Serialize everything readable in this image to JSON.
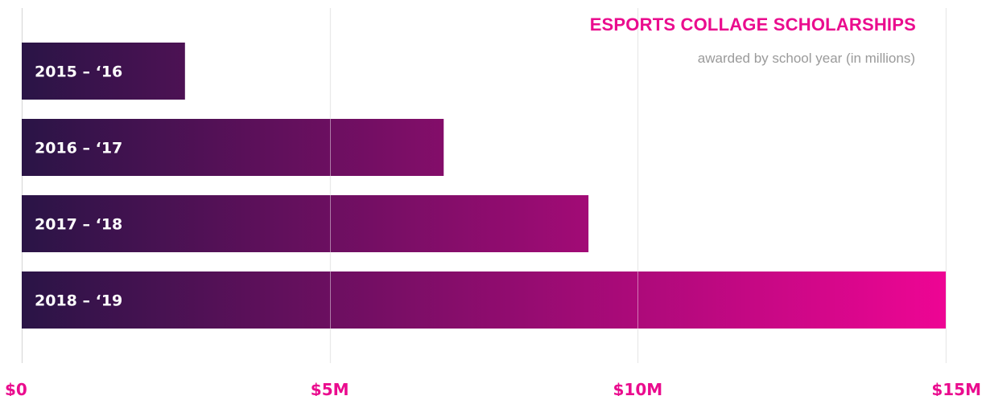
{
  "chart_data": {
    "type": "bar",
    "orientation": "horizontal",
    "title": "ESPORTS COLLAGE SCHOLARSHIPS",
    "subtitle": "awarded by school year (in millions)",
    "categories": [
      "2015 – ‘16",
      "2016 – ‘17",
      "2017 – ‘18",
      "2018 – ‘19"
    ],
    "values": [
      2.65,
      6.85,
      9.2,
      15.0
    ],
    "x_unit": "USD millions",
    "xlim": [
      0,
      15
    ],
    "x_ticks": [
      0,
      5,
      10,
      15
    ],
    "x_tick_labels": [
      "$0",
      "$5M",
      "$10M",
      "$15M"
    ],
    "grid": true,
    "colors": {
      "gradient_start": "#2a1446",
      "gradient_end": "#ee0594",
      "title": "#ea0c8e",
      "tick_label": "#ea0c8e",
      "subtitle": "#9a9a9a",
      "gridline": "#d9d9d9",
      "bar_label": "#ffffff"
    }
  }
}
